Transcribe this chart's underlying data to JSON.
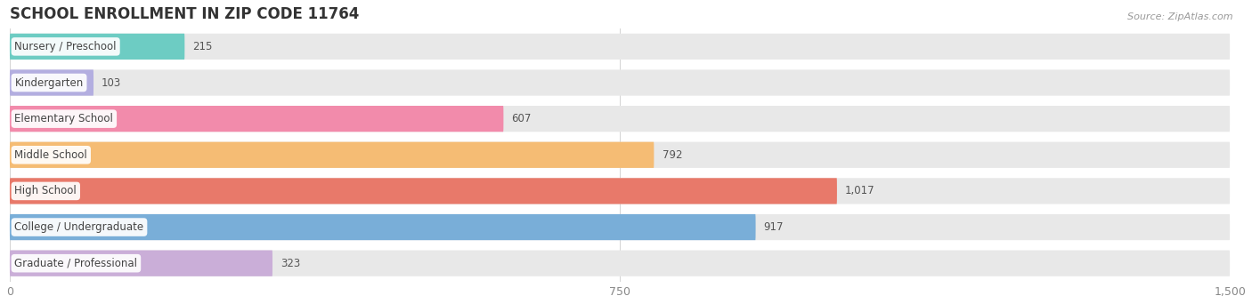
{
  "title": "SCHOOL ENROLLMENT IN ZIP CODE 11764",
  "source": "Source: ZipAtlas.com",
  "categories": [
    "Nursery / Preschool",
    "Kindergarten",
    "Elementary School",
    "Middle School",
    "High School",
    "College / Undergraduate",
    "Graduate / Professional"
  ],
  "values": [
    215,
    103,
    607,
    792,
    1017,
    917,
    323
  ],
  "bar_colors": [
    "#6dccc3",
    "#b3aee0",
    "#f28bab",
    "#f5bc74",
    "#e8796a",
    "#79aed8",
    "#caaed8"
  ],
  "bar_bg_color": "#e8e8e8",
  "xlim": [
    0,
    1500
  ],
  "xticks": [
    0,
    750,
    1500
  ],
  "title_fontsize": 12,
  "label_fontsize": 8.5,
  "value_fontsize": 8.5,
  "bar_height": 0.72,
  "bar_gap": 0.28,
  "background_color": "#ffffff"
}
